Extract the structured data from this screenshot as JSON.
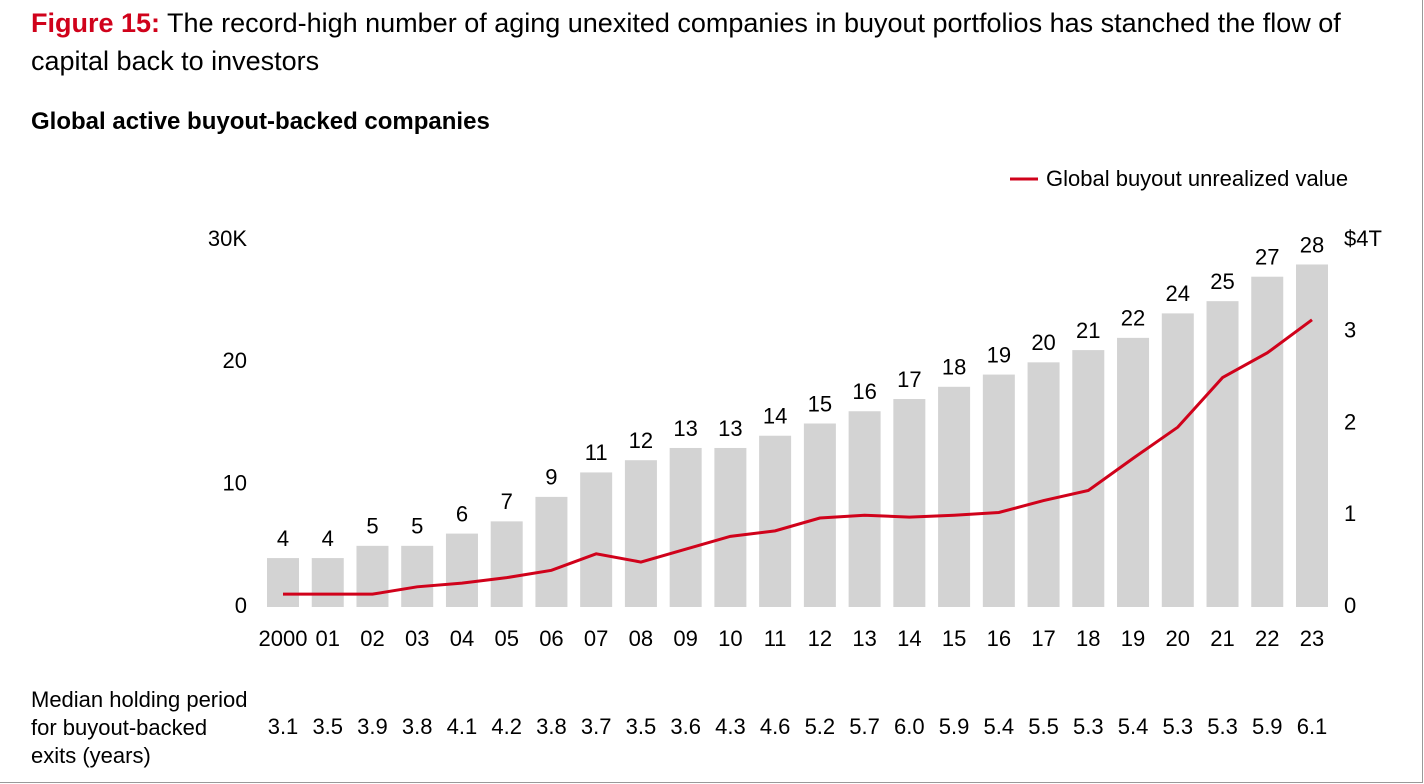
{
  "chart_data": {
    "type": "bar",
    "title_prefix": "Figure 15:",
    "title": "The record-high number of aging unexited companies in buyout portfolios has stanched the flow of capital back to investors",
    "subtitle": "Global active buyout-backed companies",
    "categories": [
      "2000",
      "01",
      "02",
      "03",
      "04",
      "05",
      "06",
      "07",
      "08",
      "09",
      "10",
      "11",
      "12",
      "13",
      "14",
      "15",
      "16",
      "17",
      "18",
      "19",
      "20",
      "21",
      "22",
      "23"
    ],
    "values": [
      4,
      4,
      5,
      5,
      6,
      7,
      9,
      11,
      12,
      13,
      13,
      14,
      15,
      16,
      17,
      18,
      19,
      20,
      21,
      22,
      24,
      25,
      27,
      28
    ],
    "color": "#d3d3d3",
    "series": [
      {
        "name": "Global buyout unrealized value",
        "color": "#d0021b",
        "axis": "y2",
        "values": [
          0.14,
          0.14,
          0.14,
          0.22,
          0.26,
          0.32,
          0.4,
          0.58,
          0.49,
          0.63,
          0.77,
          0.83,
          0.97,
          1.0,
          0.98,
          1.0,
          1.03,
          1.16,
          1.27,
          1.62,
          1.96,
          2.5,
          2.77,
          3.13
        ]
      }
    ],
    "ylim": [
      0,
      30
    ],
    "yticks": [
      0,
      10,
      20,
      {
        "value": 30,
        "label": "30K"
      }
    ],
    "y2lim": [
      0,
      4
    ],
    "y2ticks": [
      0,
      1,
      2,
      3,
      {
        "value": 4,
        "label": "$4T"
      }
    ],
    "legend": "top-right",
    "grid": false,
    "holding_period_label": "Median holding period for buyout-backed exits (years)",
    "holding_periods": [
      "3.1",
      "3.5",
      "3.9",
      "3.8",
      "4.1",
      "4.2",
      "3.8",
      "3.7",
      "3.5",
      "3.6",
      "4.3",
      "4.6",
      "5.2",
      "5.7",
      "6.0",
      "5.9",
      "5.4",
      "5.5",
      "5.3",
      "5.4",
      "5.3",
      "5.3",
      "5.9",
      "6.1"
    ]
  }
}
